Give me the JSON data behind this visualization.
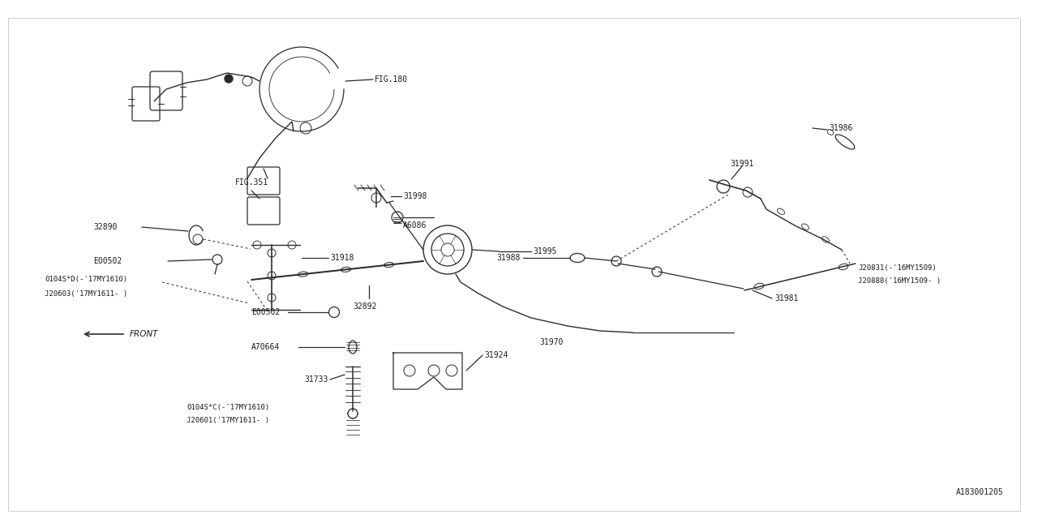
{
  "bg_color": "#ffffff",
  "line_color": "#2a2a2a",
  "text_color": "#1a1a1a",
  "fig_width": 12.8,
  "fig_height": 6.4,
  "watermark": "A183001205",
  "font_size": 7.0,
  "border": [
    0.1,
    0.1,
    12.58,
    6.18
  ]
}
